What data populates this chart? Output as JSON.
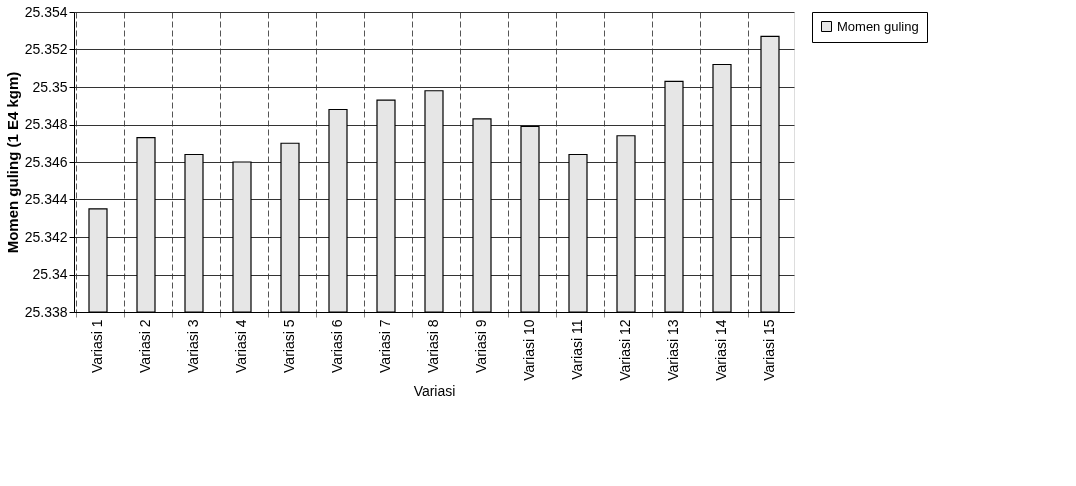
{
  "chart_data": {
    "type": "bar",
    "xlabel": "Variasi",
    "ylabel": "Momen guling (1 E4 kgm)",
    "categories": [
      "Variasi 1",
      "Variasi 2",
      "Variasi 3",
      "Variasi 4",
      "Variasi 5",
      "Variasi 6",
      "Variasi 7",
      "Variasi 8",
      "Variasi 9",
      "Variasi 10",
      "Variasi 11",
      "Variasi 12",
      "Variasi 13",
      "Variasi 14",
      "Variasi 15"
    ],
    "series": [
      {
        "name": "Momen guling",
        "color": "#e6e6e6",
        "values": [
          25.3435,
          25.3473,
          25.3464,
          25.346,
          25.347,
          25.3488,
          25.3493,
          25.3498,
          25.3483,
          25.3479,
          25.3464,
          25.3474,
          25.3503,
          25.3512,
          25.3527
        ]
      }
    ],
    "ylim": [
      25.338,
      25.354
    ],
    "yticks": [
      25.338,
      25.34,
      25.342,
      25.344,
      25.346,
      25.348,
      25.35,
      25.352,
      25.354
    ],
    "grid": true,
    "legend": "right"
  }
}
